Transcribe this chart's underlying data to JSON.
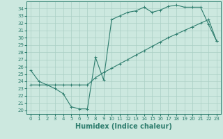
{
  "xlabel": "Humidex (Indice chaleur)",
  "xlim": [
    -0.5,
    23.5
  ],
  "ylim": [
    19.5,
    35.0
  ],
  "xticks": [
    0,
    1,
    2,
    3,
    4,
    5,
    6,
    7,
    8,
    9,
    10,
    11,
    12,
    13,
    14,
    15,
    16,
    17,
    18,
    19,
    20,
    21,
    22,
    23
  ],
  "yticks": [
    20,
    21,
    22,
    23,
    24,
    25,
    26,
    27,
    28,
    29,
    30,
    31,
    32,
    33,
    34
  ],
  "bg_color": "#cce8df",
  "line_color": "#2e7d6e",
  "grid_color": "#aacfc4",
  "line1_x": [
    0,
    1,
    2,
    3,
    4,
    5,
    6,
    7,
    8,
    9,
    10,
    11,
    12,
    13,
    14,
    15,
    16,
    17,
    18,
    19,
    20,
    21,
    22,
    23
  ],
  "line1_y": [
    25.5,
    24.0,
    23.5,
    23.0,
    22.3,
    20.5,
    20.2,
    20.2,
    27.3,
    24.2,
    32.5,
    33.0,
    33.5,
    33.7,
    34.2,
    33.5,
    33.8,
    34.3,
    34.5,
    34.2,
    34.2,
    34.2,
    31.8,
    29.5
  ],
  "line2_x": [
    0,
    1,
    2,
    3,
    4,
    5,
    6,
    7,
    8,
    9,
    10,
    11,
    12,
    13,
    14,
    15,
    16,
    17,
    18,
    19,
    20,
    21,
    22,
    23
  ],
  "line2_y": [
    23.5,
    23.5,
    23.5,
    23.5,
    23.5,
    23.5,
    23.5,
    23.5,
    24.5,
    25.2,
    25.8,
    26.4,
    27.0,
    27.6,
    28.2,
    28.8,
    29.4,
    30.0,
    30.5,
    31.0,
    31.5,
    32.0,
    32.5,
    29.5
  ],
  "fontsize_xlabel": 7,
  "fontsize_tick": 5
}
